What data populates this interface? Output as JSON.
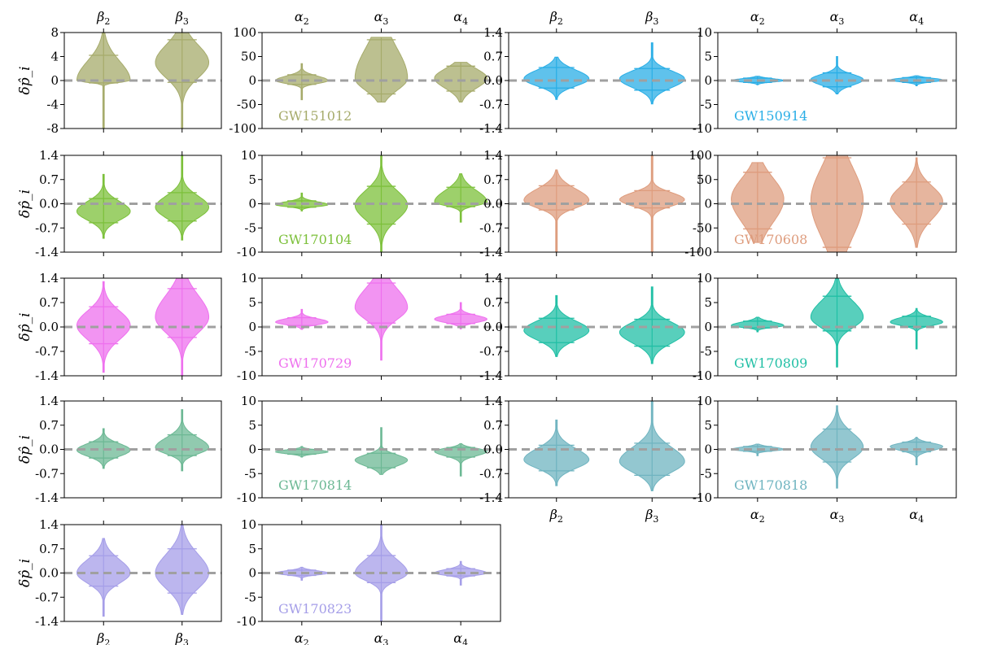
{
  "y_axis_label": "δp̂_i",
  "chart_data": [
    {
      "type": "violin",
      "panel": "GW151012-beta",
      "event": "GW151012",
      "color": "#a6ab6b",
      "categories": [
        "β2",
        "β3"
      ],
      "ylim": [
        -8,
        8
      ],
      "yticks": [
        -8,
        -4,
        0,
        4,
        8
      ],
      "ytick_labels": [
        "-8",
        "-4",
        "0",
        "4",
        "8"
      ],
      "x_labels_top": true,
      "x_labels_bottom": false,
      "ylabel": true,
      "show_event_label": false,
      "series": [
        {
          "name": "β2",
          "median": 0,
          "lo": -0.4,
          "hi": 4.2,
          "min": -8,
          "max": 8
        },
        {
          "name": "β3",
          "median": 3.0,
          "lo": -0.3,
          "hi": 6.8,
          "min": -8,
          "max": 8
        }
      ]
    },
    {
      "type": "violin",
      "panel": "GW151012-alpha",
      "event": "GW151012",
      "color": "#a6ab6b",
      "categories": [
        "α2",
        "α3",
        "α4"
      ],
      "ylim": [
        -100,
        100
      ],
      "yticks": [
        -100,
        -50,
        0,
        50,
        100
      ],
      "ytick_labels": [
        "-100",
        "-50",
        "0",
        "50",
        "100"
      ],
      "x_labels_top": true,
      "x_labels_bottom": false,
      "ylabel": false,
      "show_event_label": true,
      "series": [
        {
          "name": "α2",
          "median": 0,
          "lo": -8,
          "hi": 12,
          "min": -40,
          "max": 35
        },
        {
          "name": "α3",
          "median": 5,
          "lo": -28,
          "hi": 85,
          "min": -45,
          "max": 90
        },
        {
          "name": "α4",
          "median": 5,
          "lo": -22,
          "hi": 30,
          "min": -45,
          "max": 38
        }
      ]
    },
    {
      "type": "violin",
      "panel": "GW150914-beta",
      "event": "GW150914",
      "color": "#29aee6",
      "categories": [
        "β2",
        "β3"
      ],
      "ylim": [
        -1.4,
        1.4
      ],
      "yticks": [
        -1.4,
        -0.7,
        0,
        0.7,
        1.4
      ],
      "ytick_labels": [
        "-1.4",
        "-0.7",
        "0.0",
        "0.7",
        "1.4"
      ],
      "x_labels_top": true,
      "x_labels_bottom": false,
      "ylabel": false,
      "show_event_label": false,
      "series": [
        {
          "name": "β2",
          "median": 0.05,
          "lo": -0.22,
          "hi": 0.38,
          "min": -0.55,
          "max": 0.68
        },
        {
          "name": "β3",
          "median": 0.05,
          "lo": -0.28,
          "hi": 0.35,
          "min": -0.68,
          "max": 1.1
        }
      ]
    },
    {
      "type": "violin",
      "panel": "GW150914-alpha",
      "event": "GW150914",
      "color": "#29aee6",
      "categories": [
        "α2",
        "α3",
        "α4"
      ],
      "ylim": [
        -10,
        10
      ],
      "yticks": [
        -10,
        -5,
        0,
        5,
        10
      ],
      "ytick_labels": [
        "-10",
        "-5",
        "0",
        "5",
        "10"
      ],
      "x_labels_top": true,
      "x_labels_bottom": false,
      "ylabel": false,
      "show_event_label": true,
      "series": [
        {
          "name": "α2",
          "median": 0,
          "lo": -0.4,
          "hi": 0.5,
          "min": -0.9,
          "max": 0.9
        },
        {
          "name": "α3",
          "median": 0.2,
          "lo": -1.3,
          "hi": 1.6,
          "min": -2.8,
          "max": 5
        },
        {
          "name": "α4",
          "median": 0.1,
          "lo": -0.4,
          "hi": 0.6,
          "min": -1.1,
          "max": 1.0
        }
      ]
    },
    {
      "type": "violin",
      "panel": "GW170104-beta",
      "event": "GW170104",
      "color": "#7cc03a",
      "categories": [
        "β2",
        "β3"
      ],
      "ylim": [
        -1.4,
        1.4
      ],
      "yticks": [
        -1.4,
        -0.7,
        0,
        0.7,
        1.4
      ],
      "ytick_labels": [
        "-1.4",
        "-0.7",
        "0.0",
        "0.7",
        "1.4"
      ],
      "x_labels_top": false,
      "x_labels_bottom": false,
      "ylabel": true,
      "show_event_label": false,
      "series": [
        {
          "name": "β2",
          "median": -0.22,
          "lo": -0.55,
          "hi": 0.15,
          "min": -1.0,
          "max": 0.85
        },
        {
          "name": "β3",
          "median": -0.1,
          "lo": -0.5,
          "hi": 0.32,
          "min": -1.05,
          "max": 1.4
        }
      ]
    },
    {
      "type": "violin",
      "panel": "GW170104-alpha",
      "event": "GW170104",
      "color": "#7cc03a",
      "categories": [
        "α2",
        "α3",
        "α4"
      ],
      "ylim": [
        -10,
        10
      ],
      "yticks": [
        -10,
        -5,
        0,
        5,
        10
      ],
      "ytick_labels": [
        "-10",
        "-5",
        "0",
        "5",
        "10"
      ],
      "x_labels_top": false,
      "x_labels_bottom": false,
      "ylabel": false,
      "show_event_label": true,
      "series": [
        {
          "name": "α2",
          "median": -0.2,
          "lo": -0.7,
          "hi": 0.6,
          "min": -1.5,
          "max": 2.2
        },
        {
          "name": "α3",
          "median": -0.3,
          "lo": -4.2,
          "hi": 3.6,
          "min": -10,
          "max": 10
        },
        {
          "name": "α4",
          "median": 0.4,
          "lo": -0.6,
          "hi": 3.4,
          "min": -3.8,
          "max": 6.2
        }
      ]
    },
    {
      "type": "violin",
      "panel": "GW170608-beta",
      "event": "GW170608",
      "color": "#de9c7d",
      "categories": [
        "β2",
        "β3"
      ],
      "ylim": [
        -1.4,
        1.4
      ],
      "yticks": [
        -1.4,
        -0.7,
        0,
        0.7,
        1.4
      ],
      "ytick_labels": [
        "-1.4",
        "-0.7",
        "0.0",
        "0.7",
        "1.4"
      ],
      "x_labels_top": false,
      "x_labels_bottom": false,
      "ylabel": false,
      "show_event_label": false,
      "series": [
        {
          "name": "β2",
          "median": 0.1,
          "lo": -0.18,
          "hi": 0.52,
          "min": -1.4,
          "max": 0.98
        },
        {
          "name": "β3",
          "median": 0.12,
          "lo": -0.12,
          "hi": 0.38,
          "min": -1.4,
          "max": 1.4
        }
      ]
    },
    {
      "type": "violin",
      "panel": "GW170608-alpha",
      "event": "GW170608",
      "color": "#de9c7d",
      "categories": [
        "α2",
        "α3",
        "α4"
      ],
      "ylim": [
        -100,
        100
      ],
      "yticks": [
        -100,
        -50,
        0,
        50,
        100
      ],
      "ytick_labels": [
        "-100",
        "-50",
        "0",
        "50",
        "100"
      ],
      "x_labels_top": false,
      "x_labels_bottom": false,
      "ylabel": false,
      "show_event_label": true,
      "series": [
        {
          "name": "α2",
          "median": 10,
          "lo": -52,
          "hi": 65,
          "min": -80,
          "max": 85
        },
        {
          "name": "α3",
          "median": 5,
          "lo": -90,
          "hi": 95,
          "min": -100,
          "max": 100
        },
        {
          "name": "α4",
          "median": 5,
          "lo": -42,
          "hi": 45,
          "min": -90,
          "max": 95
        }
      ]
    },
    {
      "type": "violin",
      "panel": "GW170729-beta",
      "event": "GW170729",
      "color": "#ee70ee",
      "categories": [
        "β2",
        "β3"
      ],
      "ylim": [
        -1.4,
        1.4
      ],
      "yticks": [
        -1.4,
        -0.7,
        0,
        0.7,
        1.4
      ],
      "ytick_labels": [
        "-1.4",
        "-0.7",
        "0.0",
        "0.7",
        "1.4"
      ],
      "x_labels_top": false,
      "x_labels_bottom": false,
      "ylabel": true,
      "show_event_label": false,
      "series": [
        {
          "name": "β2",
          "median": 0.05,
          "lo": -0.48,
          "hi": 0.58,
          "min": -1.3,
          "max": 1.3
        },
        {
          "name": "β3",
          "median": 0.28,
          "lo": -0.3,
          "hi": 1.1,
          "min": -1.4,
          "max": 1.4
        }
      ]
    },
    {
      "type": "violin",
      "panel": "GW170729-alpha",
      "event": "GW170729",
      "color": "#ee70ee",
      "categories": [
        "α2",
        "α3",
        "α4"
      ],
      "ylim": [
        -10,
        10
      ],
      "yticks": [
        -10,
        -5,
        0,
        5,
        10
      ],
      "ytick_labels": [
        "-10",
        "-5",
        "0",
        "5",
        "10"
      ],
      "x_labels_top": false,
      "x_labels_bottom": false,
      "ylabel": false,
      "show_event_label": true,
      "series": [
        {
          "name": "α2",
          "median": 1.0,
          "lo": 0.3,
          "hi": 1.9,
          "min": -0.5,
          "max": 3.6
        },
        {
          "name": "α3",
          "median": 4.0,
          "lo": 0.8,
          "hi": 9.0,
          "min": -6.8,
          "max": 10
        },
        {
          "name": "α4",
          "median": 1.6,
          "lo": 0.7,
          "hi": 2.6,
          "min": -0.4,
          "max": 5.0
        }
      ]
    },
    {
      "type": "violin",
      "panel": "GW170809-beta",
      "event": "GW170809",
      "color": "#20bfa5",
      "categories": [
        "β2",
        "β3"
      ],
      "ylim": [
        -1.4,
        1.4
      ],
      "yticks": [
        -1.4,
        -0.7,
        0,
        0.7,
        1.4
      ],
      "ytick_labels": [
        "-1.4",
        "-0.7",
        "0.0",
        "0.7",
        "1.4"
      ],
      "x_labels_top": false,
      "x_labels_bottom": false,
      "ylabel": false,
      "show_event_label": false,
      "series": [
        {
          "name": "β2",
          "median": -0.1,
          "lo": -0.45,
          "hi": 0.25,
          "min": -0.85,
          "max": 0.9
        },
        {
          "name": "β3",
          "median": -0.15,
          "lo": -0.55,
          "hi": 0.22,
          "min": -1.05,
          "max": 1.15
        }
      ]
    },
    {
      "type": "violin",
      "panel": "GW170809-alpha",
      "event": "GW170809",
      "color": "#20bfa5",
      "categories": [
        "α2",
        "α3",
        "α4"
      ],
      "ylim": [
        -10,
        10
      ],
      "yticks": [
        -10,
        -5,
        0,
        5,
        10
      ],
      "ytick_labels": [
        "-10",
        "-5",
        "0",
        "5",
        "10"
      ],
      "x_labels_top": false,
      "x_labels_bottom": false,
      "ylabel": false,
      "show_event_label": true,
      "series": [
        {
          "name": "α2",
          "median": 0.3,
          "lo": -0.2,
          "hi": 1.2,
          "min": -1.0,
          "max": 2.0
        },
        {
          "name": "α3",
          "median": 2.0,
          "lo": -0.8,
          "hi": 6.3,
          "min": -8.2,
          "max": 10
        },
        {
          "name": "α4",
          "median": 1.0,
          "lo": 0.1,
          "hi": 2.2,
          "min": -4.5,
          "max": 3.8
        }
      ]
    },
    {
      "type": "violin",
      "panel": "GW170814-beta",
      "event": "GW170814",
      "color": "#6cb894",
      "categories": [
        "β2",
        "β3"
      ],
      "ylim": [
        -1.4,
        1.4
      ],
      "yticks": [
        -1.4,
        -0.7,
        0,
        0.7,
        1.4
      ],
      "ytick_labels": [
        "-1.4",
        "-0.7",
        "0.0",
        "0.7",
        "1.4"
      ],
      "x_labels_top": false,
      "x_labels_bottom": false,
      "ylabel": true,
      "show_event_label": false,
      "series": [
        {
          "name": "β2",
          "median": -0.02,
          "lo": -0.25,
          "hi": 0.22,
          "min": -0.55,
          "max": 0.6
        },
        {
          "name": "β3",
          "median": 0.05,
          "lo": -0.18,
          "hi": 0.42,
          "min": -0.62,
          "max": 1.15
        }
      ]
    },
    {
      "type": "violin",
      "panel": "GW170814-alpha",
      "event": "GW170814",
      "color": "#6cb894",
      "categories": [
        "α2",
        "α3",
        "α4"
      ],
      "ylim": [
        -10,
        10
      ],
      "yticks": [
        -10,
        -5,
        0,
        5,
        10
      ],
      "ytick_labels": [
        "-10",
        "-5",
        "0",
        "5",
        "10"
      ],
      "x_labels_top": false,
      "x_labels_bottom": false,
      "ylabel": false,
      "show_event_label": true,
      "series": [
        {
          "name": "α2",
          "median": -0.5,
          "lo": -1.0,
          "hi": 0.0,
          "min": -1.6,
          "max": 0.6
        },
        {
          "name": "α3",
          "median": -2.2,
          "lo": -3.8,
          "hi": -0.8,
          "min": -5.2,
          "max": 4.5
        },
        {
          "name": "α4",
          "median": -0.4,
          "lo": -1.6,
          "hi": 0.4,
          "min": -5.5,
          "max": 1.2
        }
      ]
    },
    {
      "type": "violin",
      "panel": "GW170818-beta",
      "event": "GW170818",
      "color": "#6fb4c0",
      "categories": [
        "β2",
        "β3"
      ],
      "ylim": [
        -1.4,
        1.4
      ],
      "yticks": [
        -1.4,
        -0.7,
        0,
        0.7,
        1.4
      ],
      "ytick_labels": [
        "-1.4",
        "-0.7",
        "0.0",
        "0.7",
        "1.4"
      ],
      "x_labels_top": false,
      "x_labels_bottom": true,
      "ylabel": false,
      "show_event_label": false,
      "series": [
        {
          "name": "β2",
          "median": -0.3,
          "lo": -0.62,
          "hi": 0.12,
          "min": -1.05,
          "max": 0.85
        },
        {
          "name": "β3",
          "median": -0.35,
          "lo": -0.75,
          "hi": 0.18,
          "min": -1.2,
          "max": 1.4
        }
      ]
    },
    {
      "type": "violin",
      "panel": "GW170818-alpha",
      "event": "GW170818",
      "color": "#6fb4c0",
      "categories": [
        "α2",
        "α3",
        "α4"
      ],
      "ylim": [
        -10,
        10
      ],
      "yticks": [
        -10,
        -5,
        0,
        5,
        10
      ],
      "ytick_labels": [
        "-10",
        "-5",
        "0",
        "5",
        "10"
      ],
      "x_labels_top": false,
      "x_labels_bottom": true,
      "ylabel": false,
      "show_event_label": true,
      "series": [
        {
          "name": "α2",
          "median": 0.0,
          "lo": -0.4,
          "hi": 0.6,
          "min": -1.3,
          "max": 1.1
        },
        {
          "name": "α3",
          "median": 0.5,
          "lo": -2.6,
          "hi": 4.2,
          "min": -8.0,
          "max": 9.0
        },
        {
          "name": "α4",
          "median": 0.6,
          "lo": -0.5,
          "hi": 1.5,
          "min": -3.2,
          "max": 2.5
        }
      ]
    },
    {
      "type": "violin",
      "panel": "GW170823-beta",
      "event": "GW170823",
      "color": "#a59ee8",
      "categories": [
        "β2",
        "β3"
      ],
      "ylim": [
        -1.4,
        1.4
      ],
      "yticks": [
        -1.4,
        -0.7,
        0,
        0.7,
        1.4
      ],
      "ytick_labels": [
        "-1.4",
        "-0.7",
        "0.0",
        "0.7",
        "1.4"
      ],
      "x_labels_top": false,
      "x_labels_bottom": true,
      "ylabel": true,
      "show_event_label": false,
      "series": [
        {
          "name": "β2",
          "median": 0.0,
          "lo": -0.38,
          "hi": 0.5,
          "min": -1.25,
          "max": 1.0
        },
        {
          "name": "β3",
          "median": 0.0,
          "lo": -0.58,
          "hi": 0.7,
          "min": -1.2,
          "max": 1.4
        }
      ]
    },
    {
      "type": "violin",
      "panel": "GW170823-alpha",
      "event": "GW170823",
      "color": "#a59ee8",
      "categories": [
        "α2",
        "α3",
        "α4"
      ],
      "ylim": [
        -10,
        10
      ],
      "yticks": [
        -10,
        -5,
        0,
        5,
        10
      ],
      "ytick_labels": [
        "-10",
        "-5",
        "0",
        "5",
        "10"
      ],
      "x_labels_top": false,
      "x_labels_bottom": true,
      "ylabel": false,
      "show_event_label": true,
      "series": [
        {
          "name": "α2",
          "median": 0.0,
          "lo": -0.5,
          "hi": 0.6,
          "min": -1.5,
          "max": 1.2
        },
        {
          "name": "α3",
          "median": 0.0,
          "lo": -2.0,
          "hi": 3.6,
          "min": -10,
          "max": 10
        },
        {
          "name": "α4",
          "median": 0.0,
          "lo": -0.6,
          "hi": 0.9,
          "min": -2.5,
          "max": 2.4
        }
      ]
    }
  ]
}
